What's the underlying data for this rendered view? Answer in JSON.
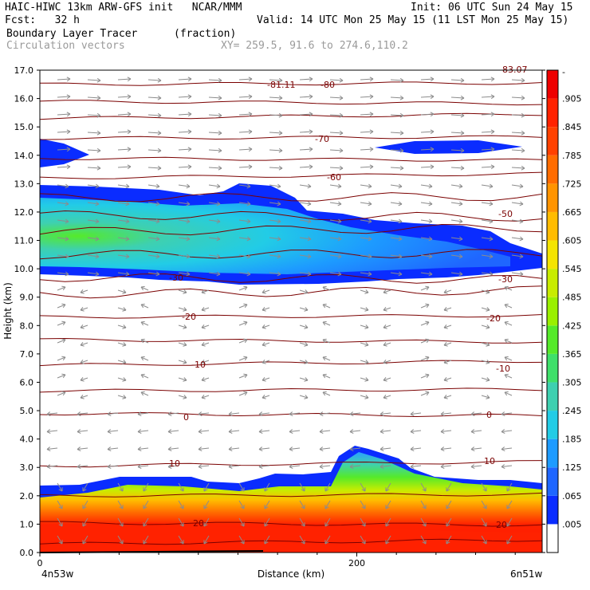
{
  "header": {
    "line1_left": "HAIC-HIWC 13km ARW-GFS init   NCAR/MMM",
    "line1_right": "Init: 06 UTC Sun 24 May 15",
    "line2_left": "Fcst:   32 h",
    "line2_right": "Valid: 14 UTC Mon 25 May 15 (11 LST Mon 25 May 15)",
    "line3_left": "Boundary Layer Tracer",
    "line3_units": "(fraction)",
    "line4_left": "Circulation vectors",
    "line4_xy": "XY= 259.5, 91.6 to 274.6,110.2"
  },
  "colors": {
    "frame": "#000000",
    "contour": "#7a0000",
    "vector": "#8c8c8c",
    "labels_gray": "#9a9a9a"
  },
  "chart_data": {
    "type": "heatmap",
    "title": "Boundary Layer Tracer",
    "units": "(fraction)",
    "xlabel": "Distance (km)",
    "ylabel": "Height (km)",
    "xlim": [
      0,
      317
    ],
    "ylim": [
      0,
      17
    ],
    "x_ticks": [
      0,
      200
    ],
    "x_tick_labels": [
      "0",
      "200"
    ],
    "x_end_labels": {
      "left": "4n53w",
      "right": "6n51w"
    },
    "y_ticks": [
      0,
      1,
      2,
      3,
      4,
      5,
      6,
      7,
      8,
      9,
      10,
      11,
      12,
      13,
      14,
      15,
      16,
      17
    ],
    "y_tick_labels": [
      "0.0",
      "1.0",
      "2.0",
      "3.0",
      "4.0",
      "5.0",
      "6.0",
      "7.0",
      "8.0",
      "9.0",
      "10.0",
      "11.0",
      "12.0",
      "13.0",
      "14.0",
      "15.0",
      "16.0",
      "17.0"
    ],
    "colorbar": {
      "levels": [
        ".005",
        ".065",
        ".125",
        ".185",
        ".245",
        ".305",
        ".365",
        ".425",
        ".485",
        ".545",
        ".605",
        ".665",
        ".725",
        ".785",
        ".845",
        ".905"
      ],
      "colors": [
        "#ffffff",
        "#0a2cff",
        "#1f66ff",
        "#1d9bff",
        "#22cce6",
        "#3ed0b0",
        "#3fe06a",
        "#55ea2a",
        "#9af000",
        "#c8ec00",
        "#f4e400",
        "#ffbc00",
        "#ff9400",
        "#ff6c00",
        "#ff4100",
        "#ff2200",
        "#ee0000"
      ]
    },
    "temperature_contour_labels": [
      "-81.11",
      "-80",
      "-70",
      "-60",
      "-50",
      "-30",
      "-20",
      "-10",
      "0",
      "10",
      "20"
    ],
    "contour_label_top_right": "83.07"
  }
}
